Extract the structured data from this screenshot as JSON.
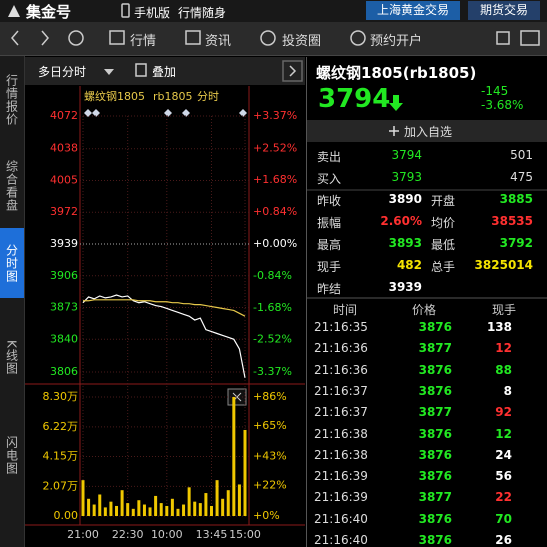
{
  "header": {
    "logo": "集金号",
    "mobile": "手机版",
    "slogan": "行情随身",
    "tabs": [
      "上海黄金交易",
      "期货交易"
    ]
  },
  "toolbar": {
    "items": [
      "行情",
      "资讯",
      "投资圈",
      "预约开户"
    ]
  },
  "sidebar": {
    "tabs": [
      "行情报价",
      "综合看盘",
      "分时图",
      "K线图",
      "闪电图"
    ],
    "active": 2
  },
  "chart_toolbar": {
    "mode": "多日分时",
    "overlay": "叠加"
  },
  "chart_data": [
    {
      "type": "line",
      "title": "螺纹钢1805",
      "symbol": "rb1805",
      "period": "分时",
      "categories": [
        "21:00",
        null,
        null,
        null,
        null,
        null,
        null,
        null,
        "22:30",
        null,
        null,
        null,
        null,
        null,
        null,
        "10:00",
        null,
        null,
        null,
        null,
        null,
        null,
        null,
        "13:45",
        null,
        null,
        null,
        null,
        null,
        "15:00"
      ],
      "series": [
        {
          "color": "#ffffff",
          "values": [
            3878,
            3884,
            3882,
            3885,
            3883,
            3884,
            3886,
            3884,
            3885,
            3880,
            3878,
            3879,
            3877,
            3875,
            3874,
            3872,
            3870,
            3868,
            3866,
            3864,
            3860,
            3862,
            3850,
            3848,
            3846,
            3844,
            3842,
            3840,
            3830,
            3800
          ]
        },
        {
          "color": "#e6c84a",
          "values": [
            3880,
            3880,
            3881,
            3881,
            3881,
            3881,
            3881,
            3881,
            3881,
            3881,
            3880,
            3880,
            3880,
            3879,
            3879,
            3879,
            3878,
            3878,
            3877,
            3877,
            3876,
            3876,
            3875,
            3874,
            3873,
            3872,
            3871,
            3870,
            3867,
            3864
          ]
        }
      ],
      "ylim": [
        3806,
        4072
      ],
      "yticks": [
        4072,
        4038,
        4005,
        3972,
        3939,
        3906,
        3873,
        3840,
        3806
      ],
      "y2lim": [
        -3.37,
        3.37
      ],
      "y2ticks": [
        {
          "value": 3.37,
          "label": "+3.37%"
        },
        {
          "value": 2.52,
          "label": "+2.52%"
        },
        {
          "value": 1.68,
          "label": "+1.68%"
        },
        {
          "value": 0.84,
          "label": "+0.84%"
        },
        {
          "value": 0,
          "label": "+0.00%"
        },
        {
          "value": -0.84,
          "label": "-0.84%"
        },
        {
          "value": -1.68,
          "label": "-1.68%"
        },
        {
          "value": -2.52,
          "label": "-2.52%"
        },
        {
          "value": -3.37,
          "label": "-3.37%"
        }
      ],
      "grid": true
    },
    {
      "type": "bar",
      "color": "#f0c800",
      "values": [
        2.5,
        1.2,
        0.8,
        1.5,
        0.6,
        1.0,
        0.7,
        1.8,
        0.9,
        0.5,
        1.1,
        0.8,
        0.6,
        1.4,
        0.9,
        0.7,
        1.2,
        0.5,
        0.8,
        2.0,
        1.0,
        0.9,
        1.6,
        0.7,
        2.5,
        1.2,
        1.8,
        8.3,
        2.2,
        6.0
      ],
      "ylim": [
        0,
        8.3
      ],
      "yticks": [
        {
          "value": 8.3,
          "label": "8.30万"
        },
        {
          "value": 6.22,
          "label": "6.22万"
        },
        {
          "value": 4.15,
          "label": "4.15万"
        },
        {
          "value": 2.07,
          "label": "2.07万"
        },
        {
          "value": 0,
          "label": "0.00"
        }
      ],
      "y2lim": [
        0,
        86
      ],
      "y2ticks": [
        {
          "value": 86,
          "label": "+86%"
        },
        {
          "value": 65,
          "label": "+65%"
        },
        {
          "value": 43,
          "label": "+43%"
        },
        {
          "value": 22,
          "label": "+22%"
        },
        {
          "value": 0,
          "label": "+0%"
        }
      ],
      "grid": true
    }
  ],
  "quote": {
    "title": "螺纹钢1805(rb1805)",
    "price": 3794,
    "change": -145,
    "change_pct": "-3.68%",
    "add_watch": "加入自选",
    "orders": [
      {
        "label": "卖出",
        "price": 3794,
        "volume": 501
      },
      {
        "label": "买入",
        "price": 3793,
        "volume": 475
      }
    ],
    "stats": [
      [
        {
          "label": "昨收",
          "value": 3890,
          "color": "#ffffff"
        },
        {
          "label": "开盘",
          "value": 3885,
          "color": "#22e822"
        }
      ],
      [
        {
          "label": "振幅",
          "value": "2.60%",
          "color": "#ff3030"
        },
        {
          "label": "均价",
          "value": 38535,
          "color": "#ff3030"
        }
      ],
      [
        {
          "label": "最高",
          "value": 3893,
          "color": "#22e822"
        },
        {
          "label": "最低",
          "value": 3792,
          "color": "#22e822"
        }
      ],
      [
        {
          "label": "现手",
          "value": 482,
          "color": "#f5e400"
        },
        {
          "label": "总手",
          "value": 3825014,
          "color": "#f5e400"
        }
      ],
      [
        {
          "label": "昨结",
          "value": 3939,
          "color": "#ffffff"
        }
      ]
    ]
  },
  "trades": {
    "columns": [
      "时间",
      "价格",
      "现手"
    ],
    "rows": [
      {
        "time": "21:16:35",
        "price": 3876,
        "volume": 138,
        "color": "#ffffff"
      },
      {
        "time": "21:16:36",
        "price": 3877,
        "volume": 12,
        "color": "#ff3030"
      },
      {
        "time": "21:16:36",
        "price": 3876,
        "volume": 88,
        "color": "#22e822"
      },
      {
        "time": "21:16:37",
        "price": 3876,
        "volume": 8,
        "color": "#ffffff"
      },
      {
        "time": "21:16:37",
        "price": 3877,
        "volume": 92,
        "color": "#ff3030"
      },
      {
        "time": "21:16:38",
        "price": 3876,
        "volume": 12,
        "color": "#22e822"
      },
      {
        "time": "21:16:38",
        "price": 3876,
        "volume": 24,
        "color": "#ffffff"
      },
      {
        "time": "21:16:39",
        "price": 3876,
        "volume": 56,
        "color": "#ffffff"
      },
      {
        "time": "21:16:39",
        "price": 3877,
        "volume": 22,
        "color": "#ff3030"
      },
      {
        "time": "21:16:40",
        "price": 3876,
        "volume": 70,
        "color": "#22e822"
      },
      {
        "time": "21:16:40",
        "price": 3876,
        "volume": 26,
        "color": "#ffffff"
      }
    ]
  }
}
